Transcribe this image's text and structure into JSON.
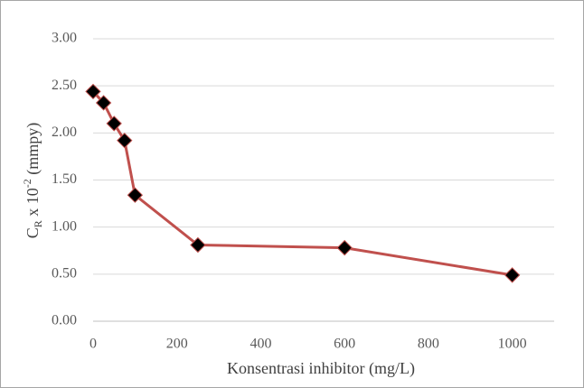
{
  "chart_data": {
    "type": "line",
    "x": [
      0,
      25,
      50,
      75,
      100,
      250,
      600,
      1000
    ],
    "series": [
      {
        "values": [
          2.44,
          2.32,
          2.1,
          1.92,
          1.34,
          0.81,
          0.78,
          0.49
        ],
        "color": "#c0504d",
        "marker_color": "#000000"
      }
    ],
    "xlabel": "Konsentrasi inhibitor (mg/L)",
    "ylabel_parts": [
      "C",
      "R",
      " x 10",
      "-2",
      " (mmpy)"
    ],
    "xlim": [
      0,
      1100
    ],
    "xticks": [
      0,
      200,
      400,
      600,
      800,
      1000
    ],
    "ylim": [
      0,
      3
    ],
    "yticks": [
      {
        "value": 0,
        "label": "0.00"
      },
      {
        "value": 0.5,
        "label": "0.50"
      },
      {
        "value": 1,
        "label": "1.00"
      },
      {
        "value": 1.5,
        "label": "1.50"
      },
      {
        "value": 2,
        "label": "2.00"
      },
      {
        "value": 2.5,
        "label": "2.50"
      },
      {
        "value": 3,
        "label": "3.00"
      }
    ],
    "grid": true
  }
}
